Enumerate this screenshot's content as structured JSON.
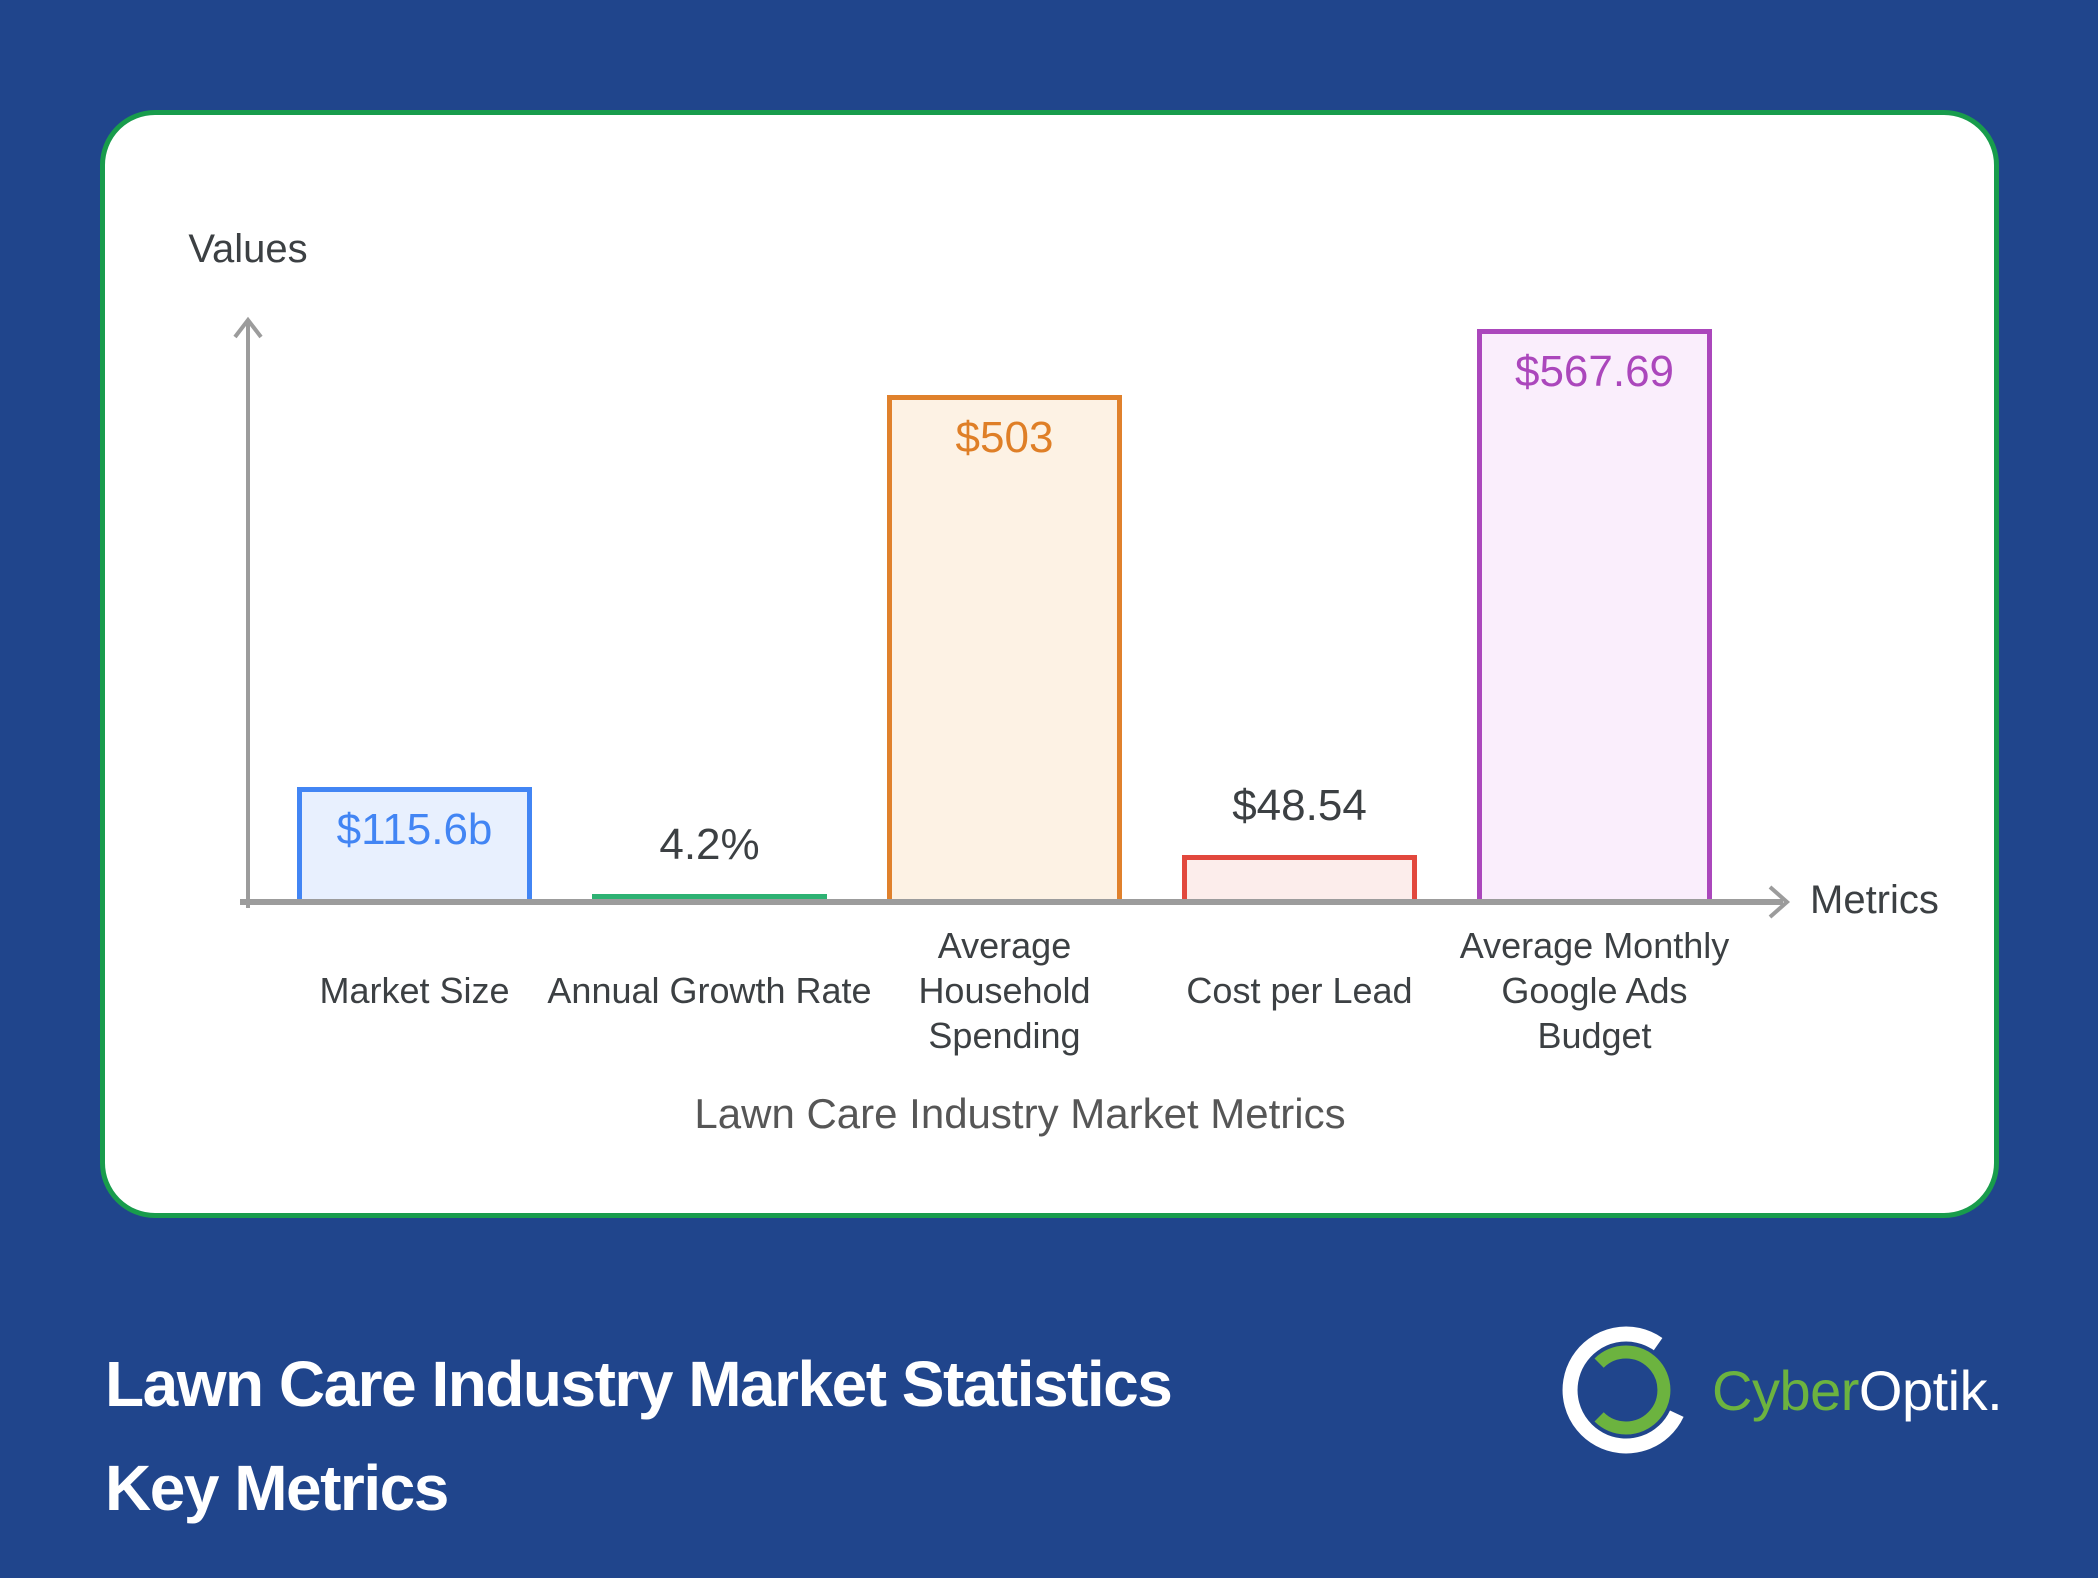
{
  "page": {
    "background": "#20458c"
  },
  "card": {
    "background": "#ffffff",
    "border_color": "#189c4c"
  },
  "chart": {
    "title": "Lawn Care Industry Market Metrics",
    "y_axis_label": "Values",
    "x_axis_label": "Metrics",
    "axis_color": "#9c9c9c",
    "tick_label_color": "#3c4043",
    "title_color": "#565656"
  },
  "chart_data": {
    "type": "bar",
    "title": "Lawn Care Industry Market Metrics",
    "xlabel": "Metrics",
    "ylabel": "Values",
    "categories": [
      "Market Size",
      "Annual Growth Rate",
      "Average Household Spending",
      "Cost per Lead",
      "Average Monthly Google Ads Budget"
    ],
    "values": [
      115.6,
      4.2,
      503,
      48.54,
      567.69
    ],
    "ylim": [
      0,
      600
    ],
    "grid": false,
    "legend": false,
    "bars": [
      {
        "tick_label": "Market Size",
        "value": 115.6,
        "value_label": "$115.6b",
        "border_color": "#4285f4",
        "fill_color": "#e8f0fe",
        "value_label_color": "#4285f4",
        "value_label_position": "inside"
      },
      {
        "tick_label": "Annual Growth Rate",
        "value": 4.2,
        "value_label": "4.2%",
        "border_color": "#2eb273",
        "fill_color": "#44c186",
        "value_label_color": "#3c4043",
        "value_label_position": "above"
      },
      {
        "tick_label": "Average\nHousehold\nSpending",
        "value": 503,
        "value_label": "$503",
        "border_color": "#e0812c",
        "fill_color": "#fdf2e4",
        "value_label_color": "#df7f27",
        "value_label_position": "inside"
      },
      {
        "tick_label": "Cost per Lead",
        "value": 48.54,
        "value_label": "$48.54",
        "border_color": "#e2483d",
        "fill_color": "#fcedeb",
        "value_label_color": "#3c4043",
        "value_label_position": "above"
      },
      {
        "tick_label": "Average Monthly\nGoogle Ads\nBudget",
        "value": 567.69,
        "value_label": "$567.69",
        "border_color": "#ab47bc",
        "fill_color": "#faeefc",
        "value_label_color": "#ab47bc",
        "value_label_position": "inside"
      }
    ]
  },
  "footer": {
    "heading_line1": "Lawn Care Industry Market Statistics",
    "heading_line2": "Key Metrics",
    "text_color": "#ffffff"
  },
  "logo": {
    "text_green": "Cyber",
    "text_white": "Optik.",
    "green": "#6cb33f",
    "white": "#ffffff"
  }
}
